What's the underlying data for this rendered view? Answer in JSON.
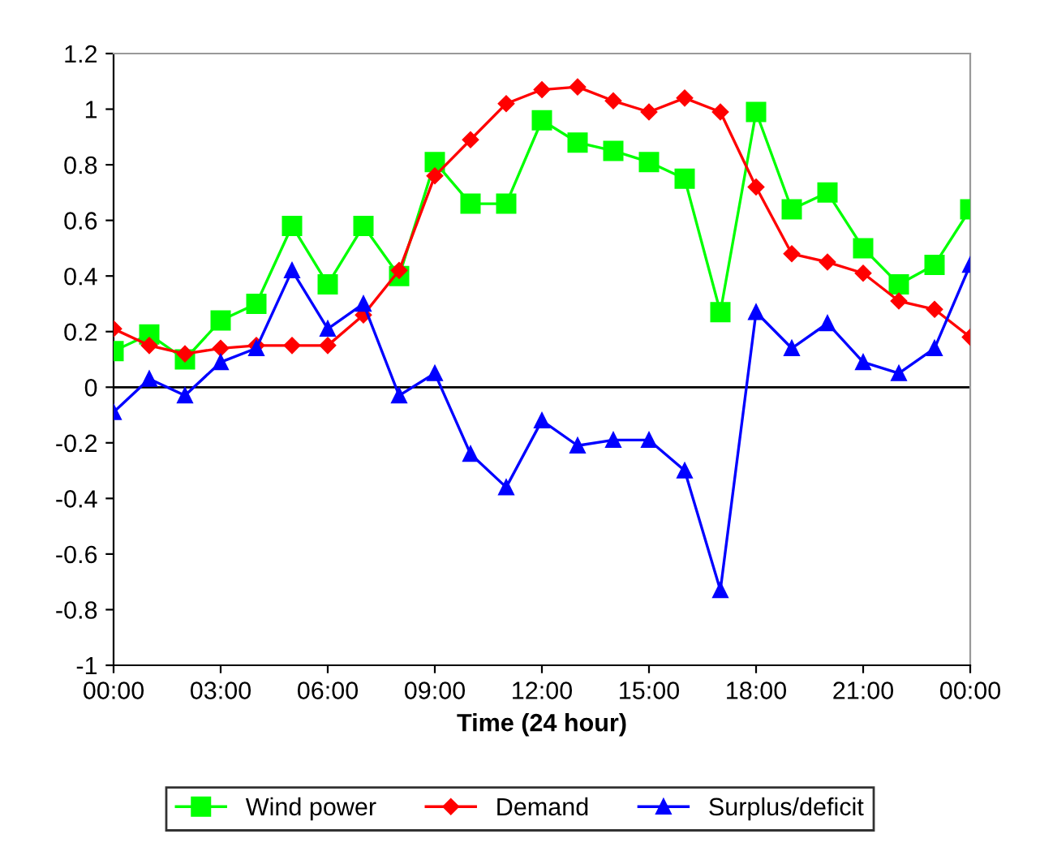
{
  "chart_data": {
    "type": "line",
    "xlabel": "Time (24 hour)",
    "x": [
      0,
      1,
      2,
      3,
      4,
      5,
      6,
      7,
      8,
      9,
      10,
      11,
      12,
      13,
      14,
      15,
      16,
      17,
      18,
      19,
      20,
      21,
      22,
      23,
      24
    ],
    "xlim": [
      0,
      24
    ],
    "xticks": [
      {
        "value": 0,
        "label": "00:00"
      },
      {
        "value": 3,
        "label": "03:00"
      },
      {
        "value": 6,
        "label": "06:00"
      },
      {
        "value": 9,
        "label": "09:00"
      },
      {
        "value": 12,
        "label": "12:00"
      },
      {
        "value": 15,
        "label": "15:00"
      },
      {
        "value": 18,
        "label": "18:00"
      },
      {
        "value": 21,
        "label": "21:00"
      },
      {
        "value": 24,
        "label": "00:00"
      }
    ],
    "ylim": [
      -1,
      1.2
    ],
    "yticks": [
      -1,
      -0.8,
      -0.6,
      -0.4,
      -0.2,
      0,
      0.2,
      0.4,
      0.6,
      0.8,
      1,
      1.2
    ],
    "series": [
      {
        "name": "Wind power",
        "color": "#00ff00",
        "marker": "square",
        "values": [
          0.13,
          0.19,
          0.1,
          0.24,
          0.3,
          0.58,
          0.37,
          0.58,
          0.4,
          0.81,
          0.66,
          0.66,
          0.96,
          0.88,
          0.85,
          0.81,
          0.75,
          0.27,
          0.99,
          0.64,
          0.7,
          0.5,
          0.37,
          0.44,
          0.64
        ]
      },
      {
        "name": "Demand",
        "color": "#ff0000",
        "marker": "diamond",
        "values": [
          0.21,
          0.15,
          0.12,
          0.14,
          0.15,
          0.15,
          0.15,
          0.26,
          0.42,
          0.76,
          0.89,
          1.02,
          1.07,
          1.08,
          1.03,
          0.99,
          1.04,
          0.99,
          0.72,
          0.48,
          0.45,
          0.41,
          0.31,
          0.28,
          0.18
        ]
      },
      {
        "name": "Surplus/deficit",
        "color": "#0000ff",
        "marker": "triangle",
        "values": [
          -0.09,
          0.03,
          -0.03,
          0.09,
          0.14,
          0.42,
          0.21,
          0.3,
          -0.03,
          0.05,
          -0.24,
          -0.36,
          -0.12,
          -0.21,
          -0.19,
          -0.19,
          -0.3,
          -0.73,
          0.27,
          0.14,
          0.23,
          0.09,
          0.05,
          0.14,
          0.44
        ]
      }
    ],
    "ref_lines": [
      {
        "axis": "y",
        "value": 0,
        "color": "#000000"
      }
    ],
    "grid": false,
    "legend": "bottom"
  }
}
